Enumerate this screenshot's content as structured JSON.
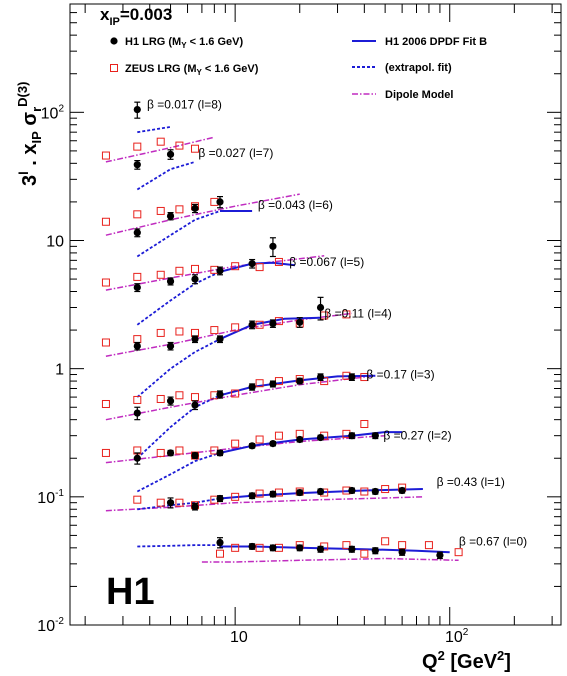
{
  "chart_data": {
    "type": "scatter",
    "title": "x_IP=0.003",
    "title_main": "x",
    "title_sub": "IP",
    "title_value": "=0.003",
    "xlabel": "Q² [GeV²]",
    "xlabel_main": "Q",
    "xlabel_sup": "2",
    "xlabel_units_open": " [GeV",
    "xlabel_units_sup": "2",
    "xlabel_units_close": "]",
    "ylabel": "3^l · x_IP σ_r^D(3)",
    "ylabel_parts": {
      "a": "3",
      "a_sup": "l",
      "b": " . x",
      "b_sub": "IP",
      "c": " σ",
      "c_sub": "r",
      "c_sup": "D(3)"
    },
    "x_scale": "log",
    "y_scale": "log",
    "xlim": [
      1.7,
      330
    ],
    "ylim": [
      0.01,
      700
    ],
    "x_ticks": [
      {
        "v": 10,
        "label": "10"
      },
      {
        "v": 100,
        "label": "10^2"
      }
    ],
    "x_tick_labels": {
      "t10": "10",
      "t100_base": "10",
      "t100_exp": "2"
    },
    "y_ticks": [
      {
        "v": 0.01,
        "base": "10",
        "exp": "-2"
      },
      {
        "v": 0.1,
        "base": "10",
        "exp": "-1"
      },
      {
        "v": 1,
        "base": "1",
        "exp": ""
      },
      {
        "v": 10,
        "base": "10",
        "exp": ""
      },
      {
        "v": 100,
        "base": "10",
        "exp": "2"
      }
    ],
    "grid": false,
    "legend_position": "top",
    "experiment_label": "H1",
    "legend": {
      "h1_data": {
        "label": "H1 LRG (M",
        "sub": "Y",
        "rest": " < 1.6 GeV)",
        "color": "#000000"
      },
      "zeus_data": {
        "label": "ZEUS LRG (M",
        "sub": "Y",
        "rest": " < 1.6 GeV)",
        "color": "#e8211c"
      },
      "fit_b": {
        "label": "H1 2006 DPDF Fit B",
        "color": "#1c1cd6"
      },
      "extrapol": {
        "label": "(extrapol. fit)",
        "color": "#1c1cd6"
      },
      "dipole": {
        "label": "Dipole Model",
        "color": "#c02cc0"
      }
    },
    "series": [
      {
        "label": "β =0.017 (l=8)",
        "h1": [
          [
            3.5,
            105,
            15
          ]
        ],
        "zeus": [],
        "fit": [],
        "extrap": [
          [
            3.5,
            70
          ],
          [
            5,
            77
          ]
        ],
        "dipole": []
      },
      {
        "label": "β =0.027 (l=7)",
        "h1": [
          [
            3.5,
            39,
            3
          ],
          [
            5,
            47,
            4
          ]
        ],
        "zeus": [
          [
            2.5,
            46
          ],
          [
            3.5,
            54
          ],
          [
            4.5,
            59
          ],
          [
            5.5,
            55
          ],
          [
            6.5,
            52
          ]
        ],
        "fit": [],
        "extrap": [
          [
            3.5,
            25
          ],
          [
            5,
            36
          ],
          [
            6.5,
            41
          ]
        ],
        "dipole": [
          [
            2.5,
            41
          ],
          [
            5,
            53
          ],
          [
            8,
            64
          ]
        ]
      },
      {
        "label": "β =0.043 (l=6)",
        "h1": [
          [
            3.5,
            11.5,
            0.8
          ],
          [
            5,
            15.5,
            1
          ],
          [
            6.5,
            17.8,
            1.3
          ],
          [
            8.5,
            20,
            2
          ]
        ],
        "zeus": [
          [
            2.5,
            14
          ],
          [
            3.5,
            16
          ],
          [
            4.5,
            17
          ],
          [
            5.5,
            17.5
          ],
          [
            6.5,
            18.5
          ],
          [
            8,
            20
          ]
        ],
        "fit": [
          [
            8.5,
            17
          ],
          [
            12,
            17
          ]
        ],
        "extrap": [
          [
            3.5,
            7.5
          ],
          [
            5,
            11
          ],
          [
            6.5,
            14.5
          ],
          [
            8.5,
            17
          ]
        ],
        "dipole": [
          [
            2.5,
            11
          ],
          [
            5,
            14.5
          ],
          [
            10,
            18.5
          ],
          [
            20,
            23
          ]
        ]
      },
      {
        "label": "β =0.067 (l=5)",
        "h1": [
          [
            3.5,
            4.3,
            0.3
          ],
          [
            5,
            4.8,
            0.3
          ],
          [
            6.5,
            5,
            0.4
          ],
          [
            8.5,
            5.8,
            0.4
          ],
          [
            12,
            6.6,
            0.5
          ],
          [
            15,
            9,
            1.5
          ]
        ],
        "zeus": [
          [
            2.5,
            4.7
          ],
          [
            3.5,
            5.2
          ],
          [
            4.5,
            5.4
          ],
          [
            5.5,
            5.8
          ],
          [
            6.5,
            6
          ],
          [
            8,
            5.9
          ],
          [
            10,
            6.3
          ],
          [
            13,
            6.2
          ],
          [
            16,
            6.8
          ]
        ],
        "fit": [
          [
            8.5,
            5.7
          ],
          [
            12,
            6.6
          ],
          [
            15,
            6.7
          ],
          [
            19,
            6.4
          ]
        ],
        "extrap": [
          [
            3.5,
            2.2
          ],
          [
            5,
            3.4
          ],
          [
            6.5,
            4.6
          ],
          [
            8.5,
            5.7
          ]
        ],
        "dipole": [
          [
            2.5,
            4.1
          ],
          [
            5,
            5.1
          ],
          [
            10,
            6.3
          ],
          [
            20,
            7.2
          ],
          [
            26,
            7.6
          ]
        ]
      },
      {
        "label": "β =0.11 (l=4)",
        "h1": [
          [
            3.5,
            1.5,
            0.1
          ],
          [
            5,
            1.5,
            0.1
          ],
          [
            6.5,
            1.7,
            0.1
          ],
          [
            8.5,
            1.7,
            0.1
          ],
          [
            12,
            2.2,
            0.15
          ],
          [
            15,
            2.25,
            0.15
          ],
          [
            20,
            2.3,
            0.2
          ],
          [
            25,
            3,
            0.6
          ]
        ],
        "zeus": [
          [
            2.5,
            1.6
          ],
          [
            3.5,
            1.7
          ],
          [
            4.5,
            1.9
          ],
          [
            5.5,
            1.95
          ],
          [
            6.5,
            1.9
          ],
          [
            8,
            2
          ],
          [
            10,
            2.1
          ],
          [
            13,
            2.2
          ],
          [
            16,
            2.35
          ],
          [
            20,
            2.25
          ],
          [
            26,
            2.6
          ],
          [
            33,
            2.65
          ]
        ],
        "fit": [
          [
            8.5,
            1.7
          ],
          [
            12,
            2.2
          ],
          [
            17,
            2.45
          ],
          [
            25,
            2.5
          ]
        ],
        "extrap": [
          [
            3.5,
            0.6
          ],
          [
            5,
            1.0
          ],
          [
            6.5,
            1.35
          ],
          [
            8.5,
            1.7
          ]
        ],
        "dipole": [
          [
            2.5,
            1.25
          ],
          [
            5,
            1.55
          ],
          [
            10,
            2
          ],
          [
            20,
            2.4
          ],
          [
            35,
            2.7
          ]
        ]
      },
      {
        "label": "β =0.17 (l=3)",
        "h1": [
          [
            3.5,
            0.45,
            0.05
          ],
          [
            5,
            0.56,
            0.04
          ],
          [
            6.5,
            0.52,
            0.04
          ],
          [
            8.5,
            0.63,
            0.04
          ],
          [
            12,
            0.72,
            0.04
          ],
          [
            15,
            0.76,
            0.04
          ],
          [
            20,
            0.8,
            0.04
          ],
          [
            25,
            0.86,
            0.05
          ],
          [
            35,
            0.86,
            0.05
          ]
        ],
        "zeus": [
          [
            2.5,
            0.53
          ],
          [
            3.5,
            0.57
          ],
          [
            4.5,
            0.58
          ],
          [
            5.5,
            0.62
          ],
          [
            6.5,
            0.6
          ],
          [
            8,
            0.62
          ],
          [
            10,
            0.64
          ],
          [
            13,
            0.77
          ],
          [
            16,
            0.8
          ],
          [
            20,
            0.83
          ],
          [
            26,
            0.8
          ],
          [
            33,
            0.88
          ],
          [
            40,
            0.86
          ]
        ],
        "fit": [
          [
            8.5,
            0.62
          ],
          [
            12,
            0.72
          ],
          [
            20,
            0.81
          ],
          [
            30,
            0.87
          ],
          [
            45,
            0.88
          ]
        ],
        "extrap": [
          [
            3.5,
            0.2
          ],
          [
            5,
            0.35
          ],
          [
            6.5,
            0.5
          ],
          [
            8.5,
            0.62
          ]
        ],
        "dipole": [
          [
            2.5,
            0.4
          ],
          [
            5,
            0.5
          ],
          [
            10,
            0.62
          ],
          [
            20,
            0.75
          ],
          [
            45,
            0.88
          ]
        ]
      },
      {
        "label": "β =0.27 (l=2)",
        "h1": [
          [
            3.5,
            0.2,
            0.02
          ],
          [
            5,
            0.22,
            0.01
          ],
          [
            6.5,
            0.21,
            0.01
          ],
          [
            8.5,
            0.22,
            0.01
          ],
          [
            12,
            0.25,
            0.01
          ],
          [
            15,
            0.26,
            0.01
          ],
          [
            20,
            0.28,
            0.012
          ],
          [
            25,
            0.29,
            0.012
          ],
          [
            35,
            0.3,
            0.015
          ],
          [
            45,
            0.3,
            0.015
          ]
        ],
        "zeus": [
          [
            2.5,
            0.22
          ],
          [
            3.5,
            0.23
          ],
          [
            4.5,
            0.22
          ],
          [
            5.5,
            0.23
          ],
          [
            6.5,
            0.21
          ],
          [
            8,
            0.23
          ],
          [
            10,
            0.26
          ],
          [
            13,
            0.28
          ],
          [
            16,
            0.3
          ],
          [
            20,
            0.31
          ],
          [
            26,
            0.3
          ],
          [
            33,
            0.31
          ],
          [
            40,
            0.37
          ]
        ],
        "fit": [
          [
            8.5,
            0.22
          ],
          [
            12,
            0.25
          ],
          [
            20,
            0.28
          ],
          [
            35,
            0.3
          ],
          [
            50,
            0.32
          ],
          [
            60,
            0.32
          ]
        ],
        "extrap": [
          [
            3.5,
            0.11
          ],
          [
            5,
            0.15
          ],
          [
            6.5,
            0.19
          ],
          [
            8.5,
            0.22
          ]
        ],
        "dipole": [
          [
            2.5,
            0.185
          ],
          [
            5,
            0.21
          ],
          [
            10,
            0.24
          ],
          [
            20,
            0.27
          ],
          [
            50,
            0.3
          ]
        ]
      },
      {
        "label": "β =0.43 (l=1)",
        "h1": [
          [
            5,
            0.09,
            0.008
          ],
          [
            6.5,
            0.084,
            0.005
          ],
          [
            8.5,
            0.097,
            0.005
          ],
          [
            12,
            0.102,
            0.005
          ],
          [
            15,
            0.105,
            0.005
          ],
          [
            20,
            0.108,
            0.005
          ],
          [
            25,
            0.11,
            0.005
          ],
          [
            35,
            0.112,
            0.005
          ],
          [
            45,
            0.11,
            0.005
          ],
          [
            60,
            0.112,
            0.005
          ]
        ],
        "zeus": [
          [
            3.5,
            0.095
          ],
          [
            4.5,
            0.09
          ],
          [
            5.5,
            0.09
          ],
          [
            6.5,
            0.086
          ],
          [
            8,
            0.095
          ],
          [
            10,
            0.1
          ],
          [
            13,
            0.106
          ],
          [
            16,
            0.108
          ],
          [
            20,
            0.11
          ],
          [
            26,
            0.108
          ],
          [
            33,
            0.112
          ],
          [
            40,
            0.11
          ],
          [
            50,
            0.115
          ],
          [
            60,
            0.118
          ]
        ],
        "fit": [
          [
            8.5,
            0.097
          ],
          [
            12,
            0.102
          ],
          [
            20,
            0.107
          ],
          [
            40,
            0.112
          ],
          [
            75,
            0.115
          ]
        ],
        "extrap": [
          [
            3.5,
            0.08
          ],
          [
            5,
            0.086
          ],
          [
            6.5,
            0.09
          ],
          [
            8.5,
            0.097
          ]
        ],
        "dipole": [
          [
            2.5,
            0.078
          ],
          [
            5,
            0.083
          ],
          [
            10,
            0.09
          ],
          [
            25,
            0.095
          ],
          [
            50,
            0.098
          ],
          [
            75,
            0.1
          ]
        ]
      },
      {
        "label": "β =0.67 (l=0)",
        "h1": [
          [
            8.5,
            0.044,
            0.004
          ],
          [
            12,
            0.041,
            0.002
          ],
          [
            15,
            0.04,
            0.002
          ],
          [
            20,
            0.04,
            0.002
          ],
          [
            25,
            0.039,
            0.002
          ],
          [
            35,
            0.039,
            0.002
          ],
          [
            45,
            0.038,
            0.002
          ],
          [
            60,
            0.037,
            0.002
          ],
          [
            90,
            0.035,
            0.002
          ]
        ],
        "zeus": [
          [
            8.5,
            0.036
          ],
          [
            10,
            0.04
          ],
          [
            13,
            0.04
          ],
          [
            16,
            0.04
          ],
          [
            20,
            0.042
          ],
          [
            26,
            0.041
          ],
          [
            33,
            0.042
          ],
          [
            40,
            0.036
          ],
          [
            50,
            0.045
          ],
          [
            60,
            0.042
          ],
          [
            80,
            0.042
          ],
          [
            110,
            0.037
          ]
        ],
        "fit": [
          [
            8.5,
            0.041
          ],
          [
            12,
            0.041
          ],
          [
            20,
            0.04
          ],
          [
            40,
            0.039
          ],
          [
            70,
            0.038
          ],
          [
            100,
            0.037
          ]
        ],
        "extrap": [
          [
            3.5,
            0.041
          ],
          [
            5,
            0.0415
          ],
          [
            6.5,
            0.042
          ],
          [
            8.5,
            0.042
          ]
        ],
        "dipole": [
          [
            7,
            0.031
          ],
          [
            10,
            0.031
          ],
          [
            20,
            0.032
          ],
          [
            50,
            0.033
          ],
          [
            110,
            0.032
          ]
        ]
      }
    ]
  }
}
